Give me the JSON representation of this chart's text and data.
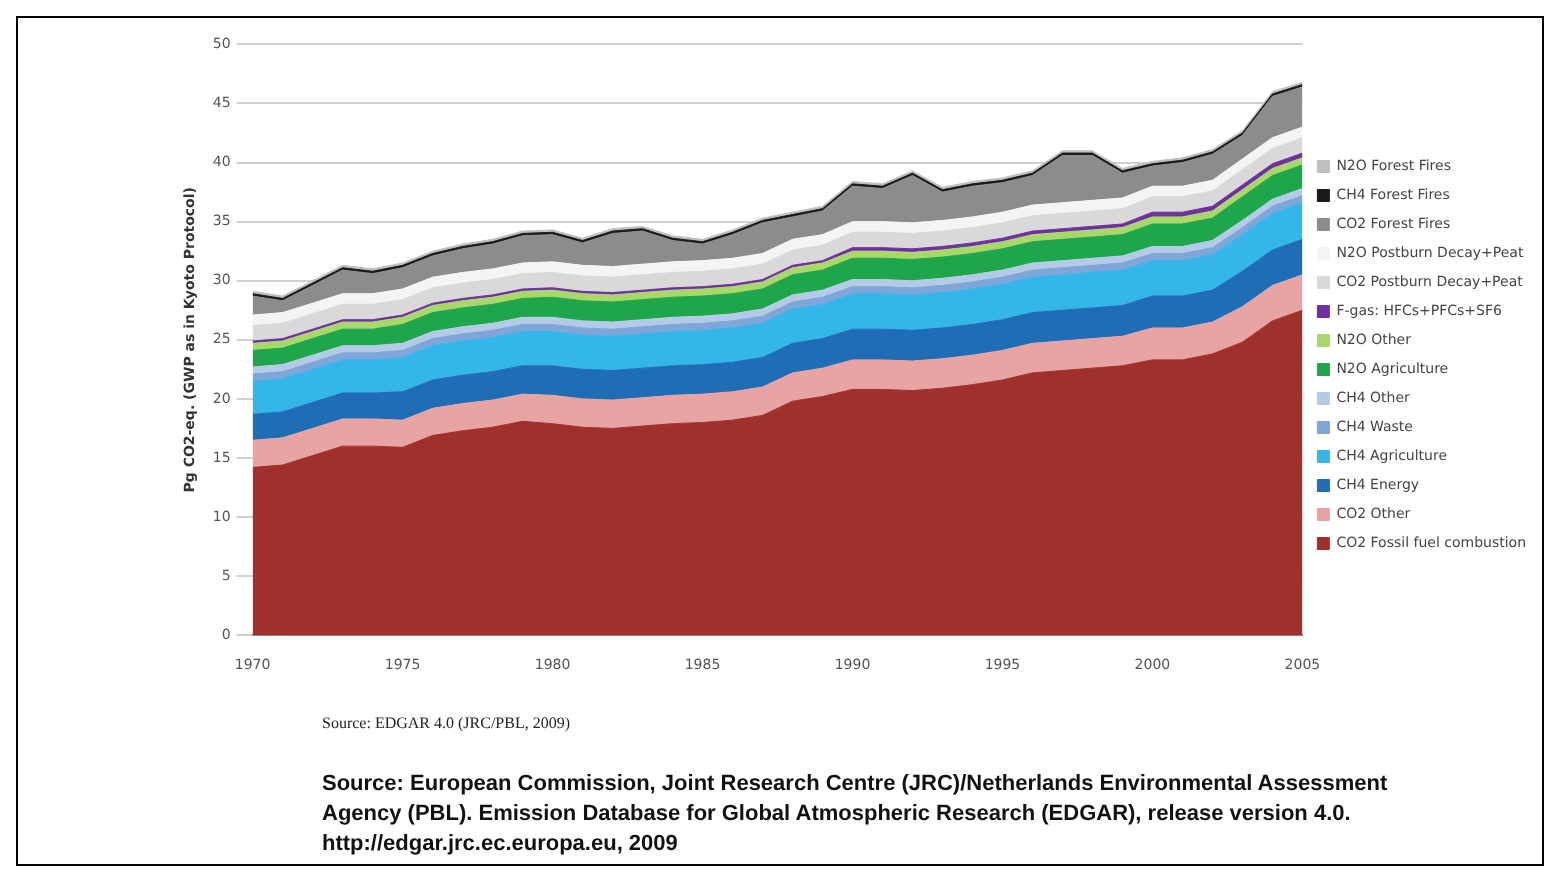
{
  "chart_data": {
    "type": "area",
    "stacked": true,
    "ylabel": "Pg CO2-eq. (GWP as in Kyoto Protocol)",
    "x": [
      1970,
      1971,
      1972,
      1973,
      1974,
      1975,
      1976,
      1977,
      1978,
      1979,
      1980,
      1981,
      1982,
      1983,
      1984,
      1985,
      1986,
      1987,
      1988,
      1989,
      1990,
      1991,
      1992,
      1993,
      1994,
      1995,
      1996,
      1997,
      1998,
      1999,
      2000,
      2001,
      2002,
      2003,
      2004,
      2005
    ],
    "xlim": [
      1970,
      2005
    ],
    "xticks": [
      1970,
      1975,
      1980,
      1985,
      1990,
      1995,
      2000,
      2005
    ],
    "ylim": [
      0,
      50
    ],
    "yticks": [
      0,
      5,
      10,
      15,
      20,
      25,
      30,
      35,
      40,
      45,
      50
    ],
    "grid": "y",
    "legend": "right",
    "series": [
      {
        "name": "CO2 Fossil fuel combustion",
        "color": "#a0302c",
        "values": [
          14.2,
          14.4,
          15.2,
          16.0,
          16.0,
          15.9,
          16.9,
          17.3,
          17.6,
          18.1,
          17.9,
          17.6,
          17.5,
          17.7,
          17.9,
          18.0,
          18.2,
          18.6,
          19.8,
          20.2,
          20.8,
          20.8,
          20.7,
          20.9,
          21.2,
          21.6,
          22.2,
          22.4,
          22.6,
          22.8,
          23.3,
          23.3,
          23.8,
          24.8,
          26.6,
          27.5
        ]
      },
      {
        "name": "CO2 Other",
        "color": "#e8a3a3",
        "values": [
          2.3,
          2.3,
          2.3,
          2.3,
          2.3,
          2.3,
          2.3,
          2.3,
          2.3,
          2.3,
          2.4,
          2.4,
          2.4,
          2.4,
          2.4,
          2.4,
          2.4,
          2.4,
          2.4,
          2.4,
          2.5,
          2.5,
          2.5,
          2.5,
          2.5,
          2.5,
          2.5,
          2.5,
          2.5,
          2.5,
          2.7,
          2.7,
          2.7,
          3.0,
          3.0,
          3.0
        ]
      },
      {
        "name": "CH4 Energy",
        "color": "#1f6db4",
        "values": [
          2.2,
          2.2,
          2.2,
          2.2,
          2.2,
          2.4,
          2.4,
          2.4,
          2.4,
          2.4,
          2.5,
          2.5,
          2.5,
          2.5,
          2.5,
          2.5,
          2.5,
          2.5,
          2.5,
          2.5,
          2.6,
          2.6,
          2.6,
          2.6,
          2.6,
          2.6,
          2.6,
          2.6,
          2.6,
          2.6,
          2.7,
          2.7,
          2.7,
          3.0,
          3.0,
          3.0
        ]
      },
      {
        "name": "CH4 Agriculture",
        "color": "#35b6ea",
        "values": [
          2.8,
          2.8,
          2.8,
          2.8,
          2.8,
          2.9,
          2.9,
          2.9,
          2.9,
          2.9,
          2.9,
          2.9,
          2.9,
          2.9,
          2.9,
          2.9,
          2.9,
          2.9,
          2.9,
          2.9,
          3.0,
          3.0,
          3.0,
          3.0,
          3.0,
          3.0,
          3.0,
          3.0,
          3.0,
          3.0,
          3.0,
          3.0,
          3.0,
          3.1,
          3.1,
          3.1
        ]
      },
      {
        "name": "CH4 Waste",
        "color": "#7ea6d8",
        "values": [
          0.6,
          0.6,
          0.6,
          0.6,
          0.6,
          0.6,
          0.6,
          0.6,
          0.6,
          0.6,
          0.6,
          0.6,
          0.6,
          0.6,
          0.6,
          0.6,
          0.6,
          0.6,
          0.6,
          0.6,
          0.6,
          0.6,
          0.6,
          0.6,
          0.6,
          0.6,
          0.6,
          0.6,
          0.6,
          0.6,
          0.6,
          0.6,
          0.6,
          0.6,
          0.6,
          0.6
        ]
      },
      {
        "name": "CH4 Other",
        "color": "#b4cbe8",
        "values": [
          0.6,
          0.6,
          0.6,
          0.6,
          0.6,
          0.6,
          0.6,
          0.6,
          0.6,
          0.6,
          0.6,
          0.6,
          0.6,
          0.6,
          0.6,
          0.6,
          0.6,
          0.6,
          0.6,
          0.6,
          0.6,
          0.6,
          0.6,
          0.6,
          0.6,
          0.6,
          0.6,
          0.6,
          0.6,
          0.6,
          0.6,
          0.6,
          0.6,
          0.6,
          0.6,
          0.6
        ]
      },
      {
        "name": "N2O Agriculture",
        "color": "#1fa64b",
        "values": [
          1.4,
          1.4,
          1.4,
          1.4,
          1.4,
          1.6,
          1.6,
          1.6,
          1.6,
          1.6,
          1.7,
          1.7,
          1.7,
          1.7,
          1.7,
          1.7,
          1.7,
          1.7,
          1.7,
          1.7,
          1.8,
          1.8,
          1.8,
          1.8,
          1.8,
          1.8,
          1.8,
          1.8,
          1.8,
          1.8,
          1.9,
          1.9,
          1.9,
          2.0,
          2.0,
          2.0
        ]
      },
      {
        "name": "N2O Other",
        "color": "#a8d86a",
        "values": [
          0.6,
          0.6,
          0.6,
          0.6,
          0.6,
          0.6,
          0.6,
          0.6,
          0.6,
          0.6,
          0.6,
          0.6,
          0.6,
          0.6,
          0.6,
          0.6,
          0.6,
          0.6,
          0.6,
          0.6,
          0.6,
          0.6,
          0.6,
          0.6,
          0.6,
          0.6,
          0.6,
          0.6,
          0.6,
          0.6,
          0.6,
          0.6,
          0.6,
          0.6,
          0.6,
          0.6
        ]
      },
      {
        "name": "F-gas: HFCs+PFCs+SF6",
        "color": "#7030a0",
        "values": [
          0.2,
          0.2,
          0.2,
          0.2,
          0.2,
          0.2,
          0.2,
          0.2,
          0.2,
          0.2,
          0.2,
          0.2,
          0.2,
          0.2,
          0.2,
          0.2,
          0.2,
          0.2,
          0.2,
          0.2,
          0.3,
          0.3,
          0.3,
          0.3,
          0.3,
          0.3,
          0.3,
          0.3,
          0.3,
          0.3,
          0.4,
          0.4,
          0.4,
          0.4,
          0.4,
          0.4
        ]
      },
      {
        "name": "CO2 Postburn Decay+Peat",
        "color": "#d9d9d9",
        "values": [
          1.3,
          1.3,
          1.3,
          1.3,
          1.3,
          1.3,
          1.3,
          1.3,
          1.3,
          1.3,
          1.3,
          1.3,
          1.3,
          1.3,
          1.3,
          1.3,
          1.3,
          1.3,
          1.3,
          1.3,
          1.3,
          1.3,
          1.3,
          1.3,
          1.3,
          1.3,
          1.3,
          1.3,
          1.3,
          1.3,
          1.3,
          1.3,
          1.3,
          1.3,
          1.3,
          1.3
        ]
      },
      {
        "name": "N2O Postburn Decay+Peat",
        "color": "#f4f4f4",
        "values": [
          0.9,
          0.9,
          0.9,
          0.9,
          0.9,
          0.9,
          0.9,
          0.9,
          0.9,
          0.9,
          0.9,
          0.9,
          0.9,
          0.9,
          0.9,
          0.9,
          0.9,
          0.9,
          0.9,
          0.9,
          0.9,
          0.9,
          0.9,
          0.9,
          0.9,
          0.9,
          0.9,
          0.9,
          0.9,
          0.9,
          0.9,
          0.9,
          0.9,
          0.9,
          0.9,
          0.9
        ]
      },
      {
        "name": "CO2 Forest Fires",
        "color": "#8c8c8c",
        "values": [
          1.6,
          1.0,
          1.5,
          2.0,
          1.7,
          1.8,
          1.8,
          2.0,
          2.1,
          2.3,
          2.3,
          1.9,
          2.8,
          2.8,
          1.8,
          1.4,
          2.0,
          2.6,
          1.9,
          2.0,
          3.0,
          2.8,
          4.0,
          2.4,
          2.6,
          2.5,
          2.5,
          4.0,
          3.8,
          2.1,
          1.7,
          2.0,
          2.2,
          2.0,
          3.5,
          3.4
        ]
      },
      {
        "name": "CH4 Forest Fires",
        "color": "#1a1a1a",
        "values": [
          0.2,
          0.2,
          0.2,
          0.2,
          0.2,
          0.2,
          0.2,
          0.2,
          0.2,
          0.2,
          0.2,
          0.2,
          0.2,
          0.2,
          0.2,
          0.2,
          0.2,
          0.2,
          0.2,
          0.2,
          0.2,
          0.2,
          0.2,
          0.2,
          0.2,
          0.2,
          0.2,
          0.2,
          0.2,
          0.2,
          0.2,
          0.2,
          0.2,
          0.2,
          0.2,
          0.2
        ]
      },
      {
        "name": "N2O Forest Fires",
        "color": "#bfbfbf",
        "values": [
          0.2,
          0.2,
          0.2,
          0.2,
          0.2,
          0.2,
          0.2,
          0.2,
          0.2,
          0.2,
          0.2,
          0.2,
          0.2,
          0.2,
          0.2,
          0.2,
          0.2,
          0.2,
          0.2,
          0.2,
          0.2,
          0.2,
          0.2,
          0.2,
          0.2,
          0.2,
          0.2,
          0.2,
          0.2,
          0.2,
          0.2,
          0.2,
          0.2,
          0.2,
          0.2,
          0.2
        ]
      }
    ],
    "annotations": [
      "Source: EDGAR 4.0 (JRC/PBL, 2009)",
      "Source: European Commission, Joint Research Centre (JRC)/Netherlands Environmental Assessment Agency (PBL). Emission Database for Global Atmospheric Research (EDGAR), release version 4.0. http://edgar.jrc.ec.europa.eu, 2009"
    ]
  }
}
